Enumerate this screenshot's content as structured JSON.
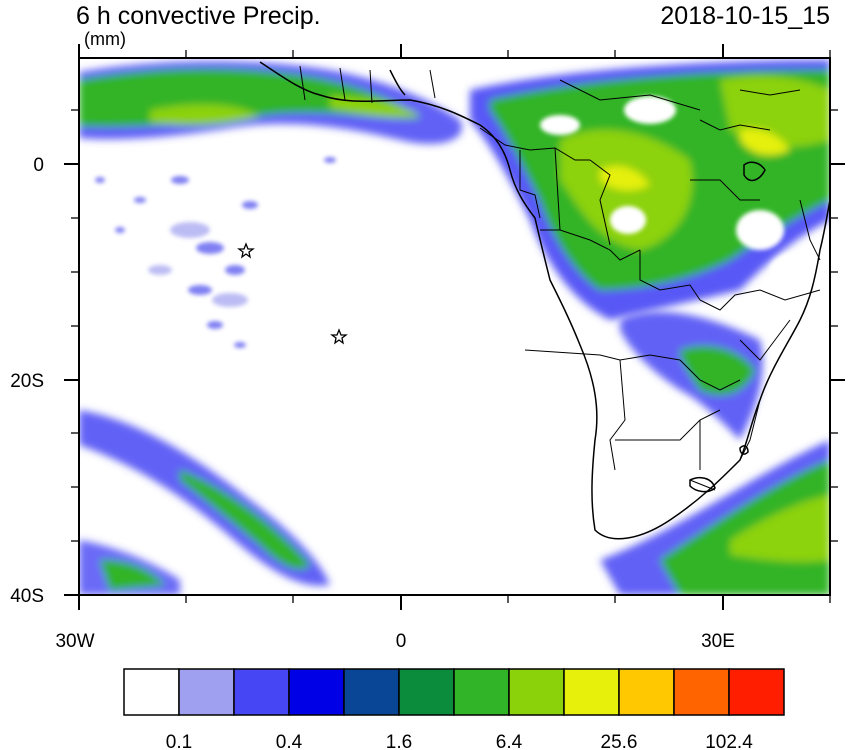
{
  "title": "6 h convective Precip.",
  "valid_time": "2018-10-15_15",
  "units": "(mm)",
  "axes": {
    "y_ticks": [
      "0",
      "20S",
      "40S"
    ],
    "x_ticks": [
      "30W",
      "0",
      "30E"
    ]
  },
  "colorbar": {
    "colors": [
      "#ffffff",
      "#a0a0f0",
      "#4646f5",
      "#0000e6",
      "#0a4696",
      "#0a8c3c",
      "#32b428",
      "#8cd20a",
      "#e6f00a",
      "#ffc800",
      "#ff6400",
      "#ff1e00"
    ],
    "labels": [
      "0.1",
      "0.4",
      "1.6",
      "6.4",
      "25.6",
      "102.4"
    ]
  },
  "markers": [
    {
      "name": "star-marker",
      "lon": -14.4,
      "lat": -7.9
    },
    {
      "name": "star-marker",
      "lon": -5.7,
      "lat": -15.9
    }
  ]
}
